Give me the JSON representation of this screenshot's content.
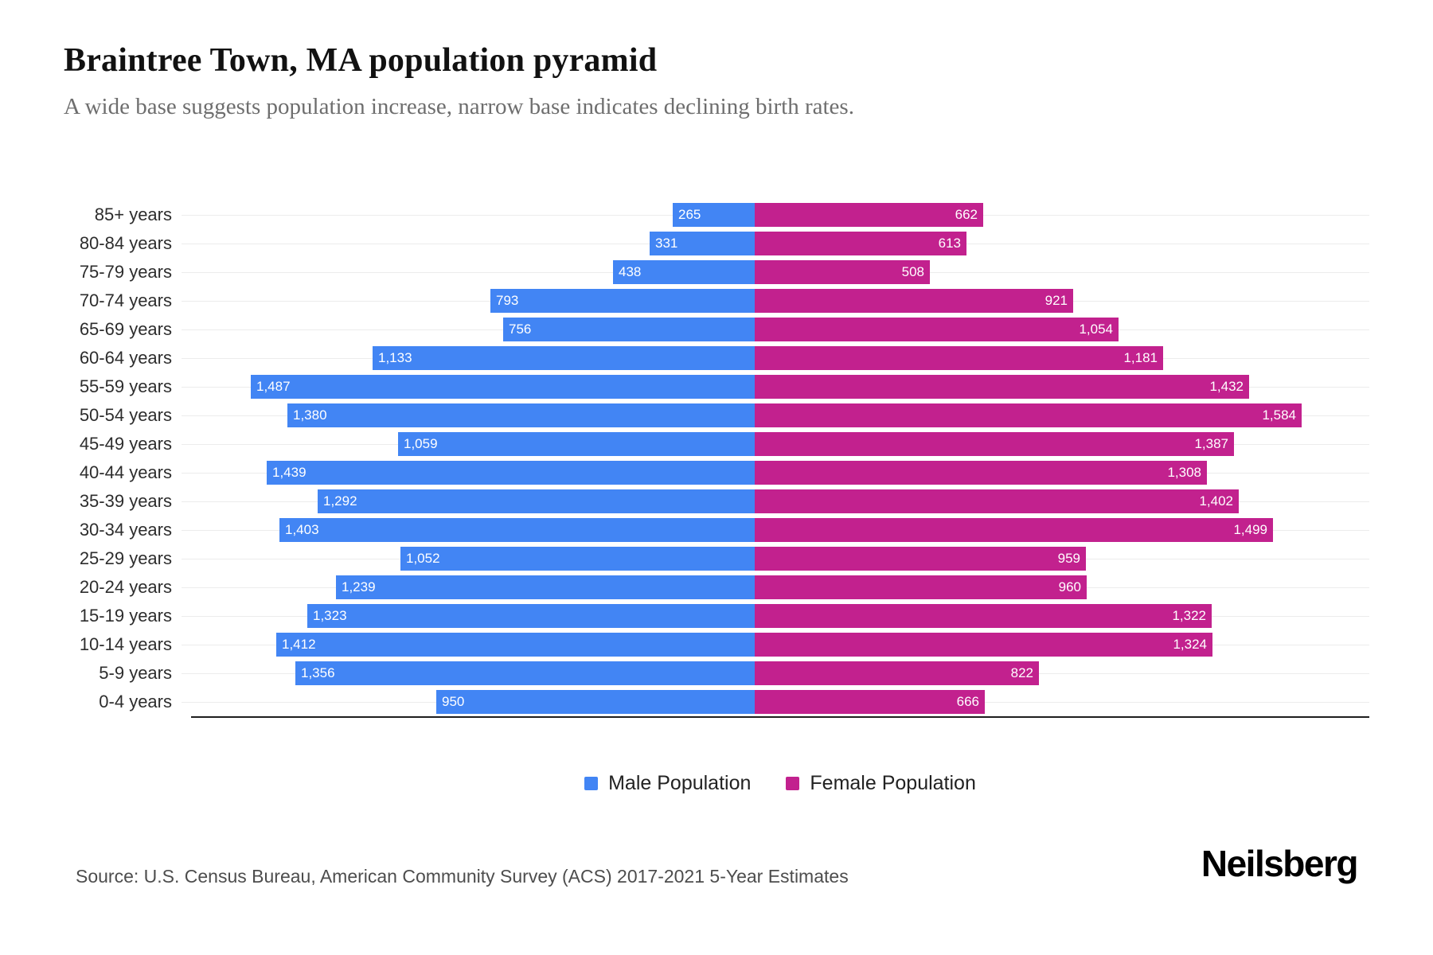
{
  "header": {
    "title": "Braintree Town, MA population pyramid",
    "subtitle": "A wide base suggests population increase, narrow base indicates declining birth rates."
  },
  "chart_data": {
    "type": "bar",
    "variant": "population-pyramid",
    "orientation": "horizontal",
    "categories": [
      "85+ years",
      "80-84 years",
      "75-79 years",
      "70-74 years",
      "65-69 years",
      "60-64 years",
      "55-59 years",
      "50-54 years",
      "45-49 years",
      "40-44 years",
      "35-39 years",
      "30-34 years",
      "25-29 years",
      "20-24 years",
      "15-19 years",
      "10-14 years",
      "5-9 years",
      "0-4 years"
    ],
    "series": [
      {
        "name": "Male Population",
        "side": "left",
        "color": "#4285F4",
        "values": [
          265,
          331,
          438,
          793,
          756,
          1133,
          1487,
          1380,
          1059,
          1439,
          1292,
          1403,
          1052,
          1239,
          1323,
          1412,
          1356,
          950
        ]
      },
      {
        "name": "Female Population",
        "side": "right",
        "color": "#C2218E",
        "values": [
          662,
          613,
          508,
          921,
          1054,
          1181,
          1432,
          1584,
          1387,
          1308,
          1402,
          1499,
          959,
          960,
          1322,
          1324,
          822,
          666
        ]
      }
    ],
    "value_labels": "inside-bar-ends, white",
    "axis_max_per_side": 1660,
    "grid": "light horizontal row lines",
    "legend_position": "bottom-center"
  },
  "legend": {
    "male_label": "Male Population",
    "female_label": "Female Population"
  },
  "colors": {
    "male": "#4285F4",
    "female": "#C2218E",
    "gridline": "#ececec",
    "axis": "#1f1f1f"
  },
  "footer": {
    "source": "Source: U.S. Census Bureau, American Community Survey (ACS) 2017-2021 5-Year Estimates",
    "brand": "Neilsberg"
  }
}
